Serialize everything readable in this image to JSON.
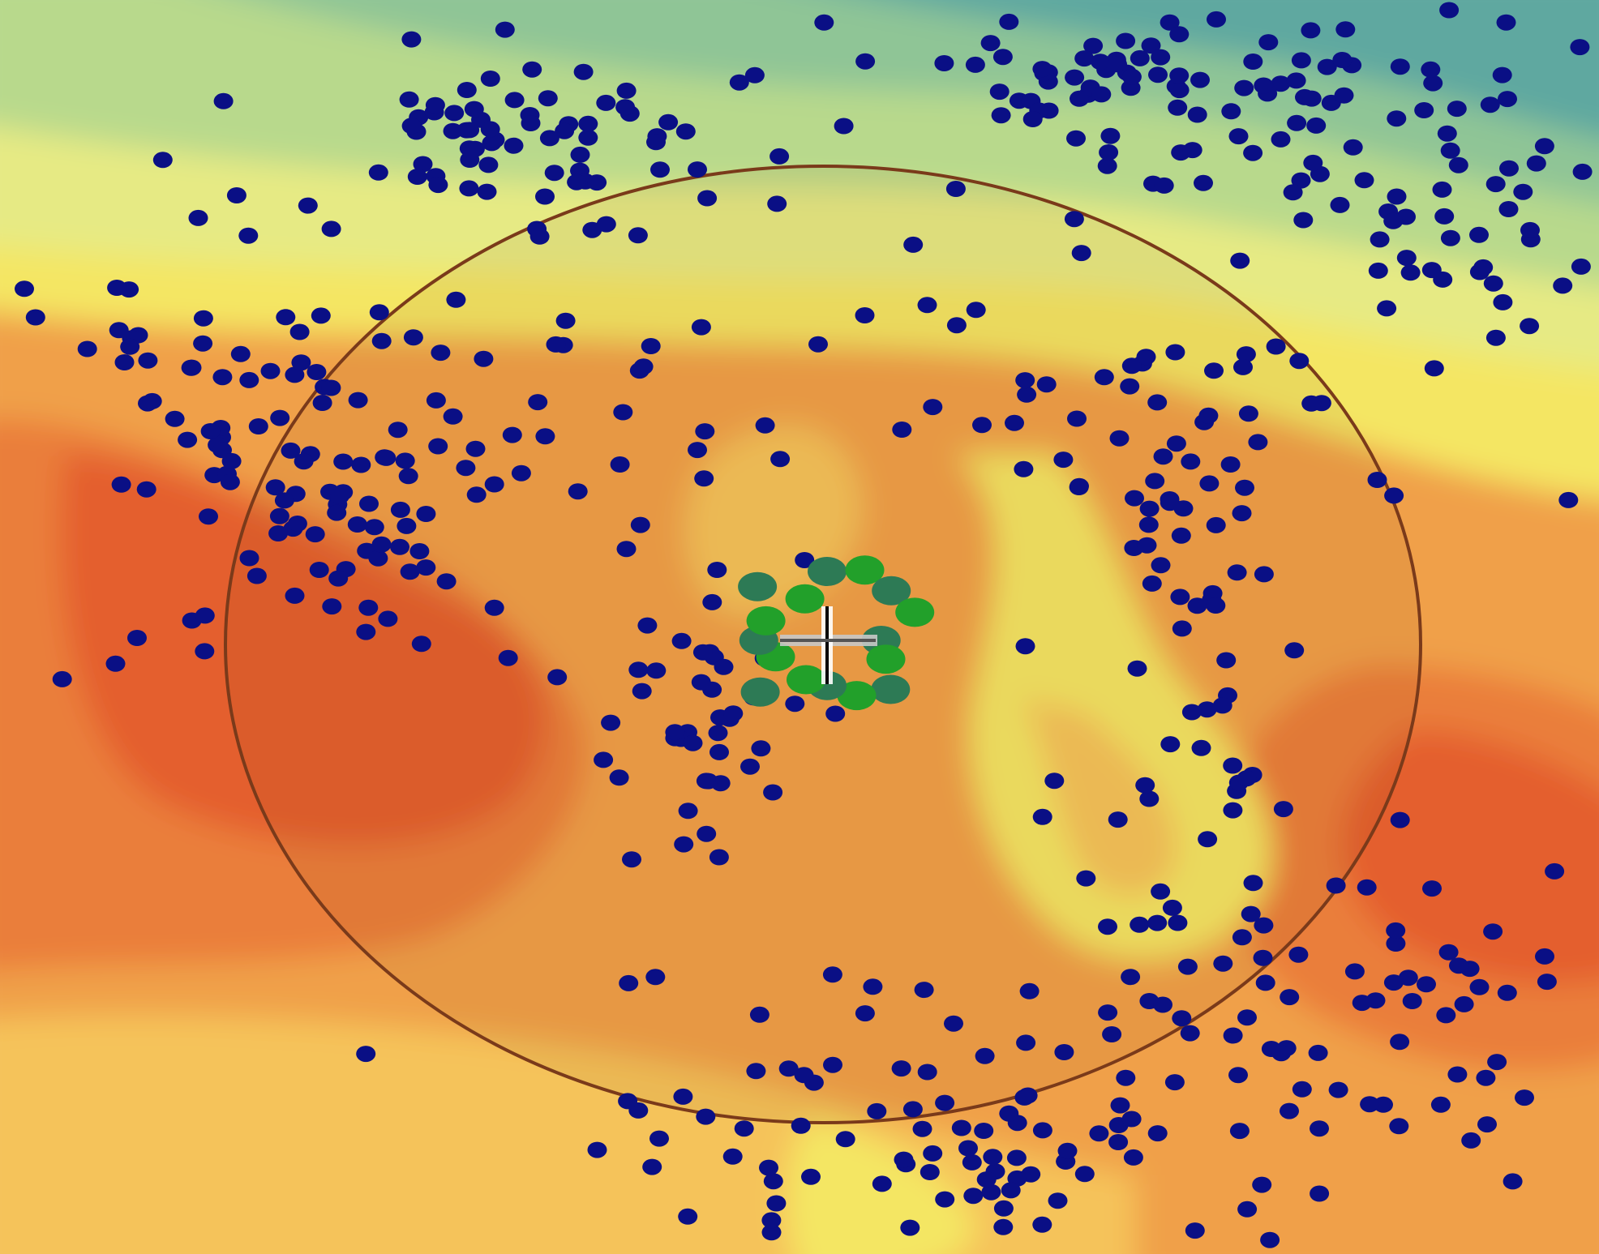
{
  "map": {
    "surface_palette": {
      "teal": "#5fa8a0",
      "sea_green": "#8fc596",
      "light_green": "#b8d98c",
      "pale_yellow": "#e6ea84",
      "yellow": "#f4e663",
      "light_orange": "#f5c35a",
      "orange": "#f0a04a",
      "deep_orange": "#ea7e3a",
      "red_orange": "#e45e2f"
    },
    "point_colors": {
      "background_points": "#0a0f85",
      "selected_points_green": "#22a02a",
      "selected_points_dark": "#2d7a55"
    },
    "search_radius_color": "#7a3a1a",
    "cursor_icon": "crosshair-cursor-icon"
  }
}
